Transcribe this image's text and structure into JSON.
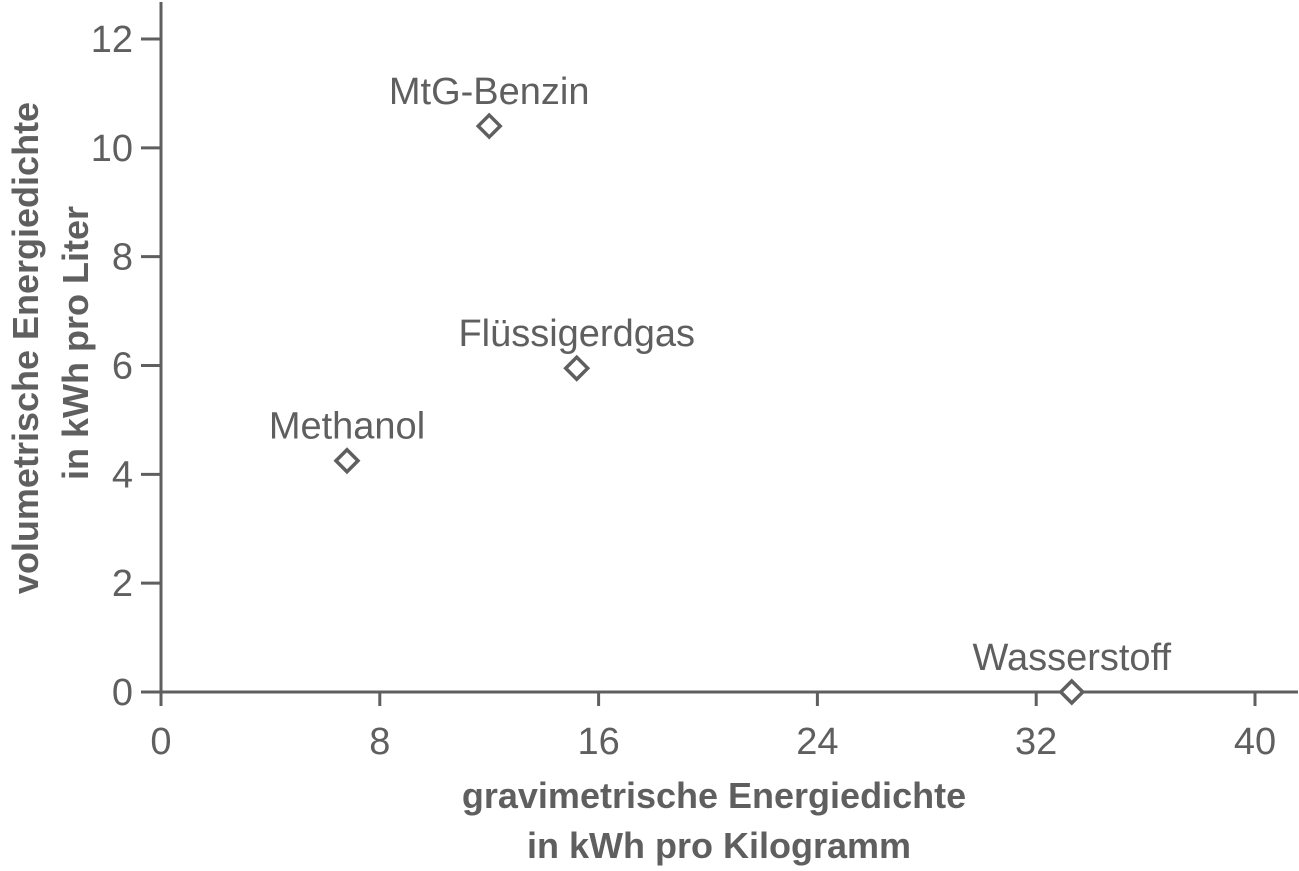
{
  "chart_data": {
    "type": "scatter",
    "title": "",
    "xlabel_lines": [
      "gravimetrische Energiedichte",
      "in kWh pro Kilogramm"
    ],
    "ylabel_lines": [
      "volumetrische Energiedichte",
      "in kWh pro Liter"
    ],
    "xlim": [
      0,
      40
    ],
    "ylim": [
      0,
      12
    ],
    "x_ticks": [
      0,
      8,
      16,
      24,
      32,
      40
    ],
    "y_ticks": [
      0,
      2,
      4,
      6,
      8,
      10,
      12
    ],
    "grid": false,
    "marker": "diamond-open",
    "colors": {
      "axis": "#5f5f5f",
      "text": "#5f5f5f",
      "marker_stroke": "#5f5f5f",
      "marker_fill": "#ffffff"
    },
    "points": [
      {
        "label": "MtG-Benzin",
        "x": 12.0,
        "y": 10.4
      },
      {
        "label": "Flüssigerdgas",
        "x": 15.2,
        "y": 5.95
      },
      {
        "label": "Methanol",
        "x": 6.8,
        "y": 4.25
      },
      {
        "label": "Wasserstoff",
        "x": 33.3,
        "y": 0.0
      }
    ]
  }
}
